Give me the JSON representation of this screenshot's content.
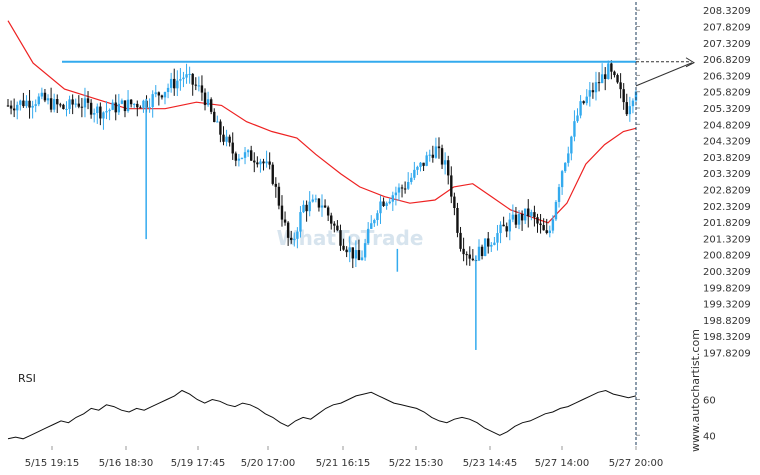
{
  "chart_data": {
    "type": "candlestick",
    "price_axis": {
      "ticks": [
        "208.3209",
        "207.8209",
        "207.3209",
        "206.8209",
        "206.3209",
        "205.8209",
        "205.3209",
        "204.8209",
        "204.3209",
        "203.8209",
        "203.3209",
        "202.8209",
        "202.3209",
        "201.8209",
        "201.3209",
        "200.8209",
        "200.3209",
        "199.8209",
        "199.3209",
        "198.8209",
        "198.3209",
        "197.8209"
      ],
      "range": [
        197.5,
        208.45
      ]
    },
    "time_axis": {
      "ticks": [
        "5/15 19:15",
        "5/16 18:30",
        "5/19 17:45",
        "5/20 17:00",
        "5/21 16:15",
        "5/22 15:30",
        "5/23 14:45",
        "5/27 14:00",
        "5/27 20:00"
      ]
    },
    "resistance_level": 206.74,
    "projection_target": 206.74,
    "series": [
      {
        "name": "price",
        "close_path": [
          {
            "t": 0.0,
            "v": 205.4
          },
          {
            "t": 0.05,
            "v": 205.6
          },
          {
            "t": 0.09,
            "v": 205.3
          },
          {
            "t": 0.11,
            "v": 205.5
          },
          {
            "t": 0.15,
            "v": 205.2
          },
          {
            "t": 0.18,
            "v": 205.4
          },
          {
            "t": 0.22,
            "v": 205.5
          },
          {
            "t": 0.25,
            "v": 205.9
          },
          {
            "t": 0.28,
            "v": 206.3
          },
          {
            "t": 0.31,
            "v": 205.8
          },
          {
            "t": 0.33,
            "v": 204.8
          },
          {
            "t": 0.36,
            "v": 203.9
          },
          {
            "t": 0.4,
            "v": 203.8
          },
          {
            "t": 0.42,
            "v": 203.3
          },
          {
            "t": 0.45,
            "v": 201.0
          },
          {
            "t": 0.47,
            "v": 202.3
          },
          {
            "t": 0.5,
            "v": 202.4
          },
          {
            "t": 0.53,
            "v": 201.3
          },
          {
            "t": 0.56,
            "v": 200.6
          },
          {
            "t": 0.59,
            "v": 202.4
          },
          {
            "t": 0.63,
            "v": 202.9
          },
          {
            "t": 0.66,
            "v": 203.6
          },
          {
            "t": 0.68,
            "v": 204.1
          },
          {
            "t": 0.7,
            "v": 203.4
          },
          {
            "t": 0.72,
            "v": 201.2
          },
          {
            "t": 0.74,
            "v": 200.7
          },
          {
            "t": 0.77,
            "v": 201.3
          },
          {
            "t": 0.8,
            "v": 201.8
          },
          {
            "t": 0.83,
            "v": 202.1
          },
          {
            "t": 0.86,
            "v": 201.3
          },
          {
            "t": 0.88,
            "v": 203.3
          },
          {
            "t": 0.91,
            "v": 205.3
          },
          {
            "t": 0.94,
            "v": 206.1
          },
          {
            "t": 0.955,
            "v": 206.5
          },
          {
            "t": 0.97,
            "v": 206.0
          },
          {
            "t": 0.985,
            "v": 205.3
          },
          {
            "t": 1.0,
            "v": 206.0
          }
        ]
      },
      {
        "name": "moving-average",
        "color": "#ee2222",
        "path": [
          {
            "t": 0.0,
            "v": 208.0
          },
          {
            "t": 0.04,
            "v": 206.7
          },
          {
            "t": 0.09,
            "v": 205.9
          },
          {
            "t": 0.14,
            "v": 205.6
          },
          {
            "t": 0.19,
            "v": 205.3
          },
          {
            "t": 0.25,
            "v": 205.3
          },
          {
            "t": 0.3,
            "v": 205.5
          },
          {
            "t": 0.34,
            "v": 205.4
          },
          {
            "t": 0.38,
            "v": 204.9
          },
          {
            "t": 0.42,
            "v": 204.6
          },
          {
            "t": 0.46,
            "v": 204.4
          },
          {
            "t": 0.49,
            "v": 203.9
          },
          {
            "t": 0.53,
            "v": 203.3
          },
          {
            "t": 0.56,
            "v": 202.9
          },
          {
            "t": 0.6,
            "v": 202.6
          },
          {
            "t": 0.64,
            "v": 202.4
          },
          {
            "t": 0.68,
            "v": 202.5
          },
          {
            "t": 0.71,
            "v": 202.9
          },
          {
            "t": 0.74,
            "v": 203.0
          },
          {
            "t": 0.77,
            "v": 202.6
          },
          {
            "t": 0.8,
            "v": 202.2
          },
          {
            "t": 0.83,
            "v": 202.0
          },
          {
            "t": 0.86,
            "v": 201.8
          },
          {
            "t": 0.89,
            "v": 202.4
          },
          {
            "t": 0.92,
            "v": 203.6
          },
          {
            "t": 0.95,
            "v": 204.2
          },
          {
            "t": 0.98,
            "v": 204.6
          },
          {
            "t": 1.0,
            "v": 204.7
          }
        ]
      }
    ],
    "rsi": {
      "label": "RSI",
      "ticks": [
        "60",
        "40"
      ],
      "range": [
        34,
        72
      ],
      "values": [
        38,
        39,
        38,
        40,
        42,
        44,
        46,
        48,
        47,
        50,
        52,
        55,
        54,
        57,
        56,
        54,
        53,
        55,
        54,
        56,
        58,
        60,
        62,
        65,
        63,
        60,
        58,
        60,
        59,
        57,
        56,
        58,
        57,
        55,
        52,
        50,
        47,
        45,
        48,
        50,
        49,
        52,
        55,
        57,
        58,
        60,
        62,
        63,
        64,
        62,
        60,
        58,
        57,
        56,
        55,
        53,
        50,
        48,
        47,
        49,
        50,
        49,
        47,
        44,
        42,
        40,
        42,
        45,
        47,
        48,
        50,
        52,
        53,
        55,
        56,
        58,
        60,
        62,
        64,
        65,
        63,
        62,
        61,
        62
      ]
    }
  },
  "watermark": {
    "brand": "www.autochartist.com",
    "center": "WhatToTrade"
  },
  "colors": {
    "up_candle": "#33aaee",
    "down_candle": "#111111",
    "resistance_line": "#33aaee",
    "ma_line": "#ee2222"
  }
}
